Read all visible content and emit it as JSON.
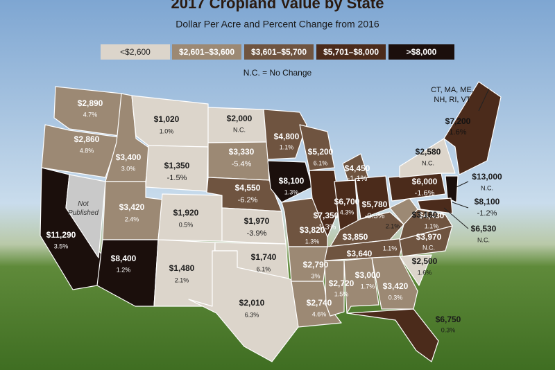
{
  "header": {
    "title": "2017 Cropland Value by State",
    "subtitle": "Dollar Per Acre and Percent Change from 2016"
  },
  "legend": [
    {
      "label": "<$2,600",
      "color": "#dcd5cb"
    },
    {
      "label": "$2,601–$3,600",
      "color": "#9c8974"
    },
    {
      "label": "$3,601–$5,700",
      "color": "#6f5440"
    },
    {
      "label": "$5,701–$8,000",
      "color": "#4b2b1b"
    },
    {
      "label": ">$8,000",
      "color": "#1b0f0c"
    }
  ],
  "note": "N.C. = No Change",
  "nevada": "Not Published",
  "states": [
    {
      "value": "$2,890",
      "change": "4.7%"
    },
    {
      "value": "$2,860",
      "change": "4.8%"
    },
    {
      "value": "$3,400",
      "change": "3.0%"
    },
    {
      "value": "$1,020",
      "change": "1.0%"
    },
    {
      "value": "$2,000",
      "change": "N.C."
    },
    {
      "value": "$1,350",
      "change": "-1.5%"
    },
    {
      "value": "$3,330",
      "change": "-5.4%"
    },
    {
      "value": "$3,420",
      "change": "2.4%"
    },
    {
      "value": "$1,920",
      "change": "0.5%"
    },
    {
      "value": "$11,290",
      "change": "3.5%"
    },
    {
      "value": "$8,400",
      "change": "1.2%"
    },
    {
      "value": "$1,480",
      "change": "2.1%"
    },
    {
      "value": "$4,550",
      "change": "-6.2%"
    },
    {
      "value": "$1,970",
      "change": "-3.9%"
    },
    {
      "value": "$1,740",
      "change": "6.1%"
    },
    {
      "value": "$2,010",
      "change": "6.3%"
    },
    {
      "value": "$4,800",
      "change": "1.1%"
    },
    {
      "value": "$8,100",
      "change": "1.3%"
    },
    {
      "value": "$5,200",
      "change": "6.1%"
    },
    {
      "value": "$4,450",
      "change": "-1.1%"
    },
    {
      "value": "$7,350",
      "change": "-1.3%"
    },
    {
      "value": "$6,700",
      "change": "4.3%"
    },
    {
      "value": "$5,780",
      "change": "-0.3%"
    },
    {
      "value": "$3,820",
      "change": "1.3%"
    },
    {
      "value": "$3,850",
      "change": "1.1%"
    },
    {
      "value": "$3,640"
    },
    {
      "value": "$2,790",
      "change": "3%"
    },
    {
      "value": "$2,740",
      "change": "4.6%"
    },
    {
      "value": "$2,720",
      "change": "1.5%"
    },
    {
      "value": "$3,000",
      "change": "1.7%"
    },
    {
      "value": "$3,420",
      "change": "0.3%"
    },
    {
      "value": "$6,750",
      "change": "0.3%"
    },
    {
      "value": "$2,500",
      "change": "1.6%"
    },
    {
      "value": "$3,970",
      "change": "N.C."
    },
    {
      "value": "$4,480",
      "change": "1.1%"
    },
    {
      "value": "$3,160",
      "change": "2.1%"
    },
    {
      "value": "$6,000",
      "change": "-1.6%"
    },
    {
      "value": "$2,580",
      "change": "N.C."
    },
    {
      "value": "$13,000",
      "change": "N.C."
    },
    {
      "value": "$8,100",
      "change": "-1.2%"
    },
    {
      "value": "$6,530",
      "change": "N.C."
    },
    {
      "label": "CT, MA, ME, NH, RI, VT",
      "value": "$7,200",
      "change": "1.6%"
    }
  ]
}
